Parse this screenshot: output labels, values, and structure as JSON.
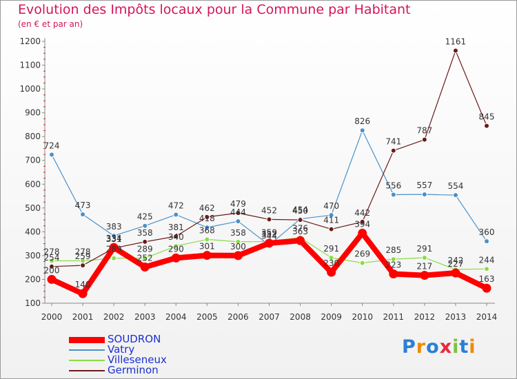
{
  "title": "Evolution des Impôts locaux pour la Commune par Habitant",
  "subtitle": "(en € et par an)",
  "logo": {
    "text": "Proxiti"
  },
  "chart_data": {
    "type": "line",
    "title": "Evolution des Impôts locaux pour la Commune par Habitant",
    "subtitle": "(en € et par an)",
    "xlabel": "",
    "ylabel": "",
    "x": [
      "2000",
      "2001",
      "2002",
      "2003",
      "2004",
      "2005",
      "2006",
      "2007",
      "2008",
      "2009",
      "2010",
      "2011",
      "2012",
      "2013",
      "2014"
    ],
    "ylim": [
      100,
      1200
    ],
    "yticks": [
      "100",
      "200",
      "300",
      "400",
      "500",
      "600",
      "700",
      "800",
      "900",
      "1000",
      "1100",
      "1200"
    ],
    "grid": false,
    "legend": "bottom-left",
    "series": [
      {
        "name": "SOUDRON",
        "color": "#ff0000",
        "values": [
          200,
          140,
          334,
          252,
          290,
          301,
          300,
          352,
          363,
          230,
          394,
          223,
          217,
          227,
          163
        ]
      },
      {
        "name": "Vatry",
        "color": "#4a90c8",
        "values": [
          724,
          473,
          383,
          425,
          472,
          418,
          444,
          344,
          454,
          470,
          826,
          556,
          557,
          554,
          360
        ]
      },
      {
        "name": "Villeseneux",
        "color": "#88dd44",
        "values": [
          278,
          278,
          289,
          289,
          340,
          368,
          358,
          359,
          376,
          291,
          269,
          285,
          291,
          242,
          244
        ]
      },
      {
        "name": "Germinon",
        "color": "#6b1a1a",
        "values": [
          254,
          259,
          331,
          358,
          381,
          462,
          479,
          452,
          450,
          411,
          442,
          741,
          787,
          1161,
          845
        ]
      }
    ],
    "point_labels": {
      "SOUDRON": [
        "200",
        "140",
        "334",
        "252",
        "290",
        "301",
        "300",
        "352",
        "363",
        "230",
        "394",
        "223",
        "217",
        "227",
        "163"
      ],
      "Vatry": [
        "724",
        "473",
        "383",
        "425",
        "472",
        "418",
        "444",
        "344",
        "454",
        "470",
        "826",
        "556",
        "557",
        "554",
        "360"
      ],
      "Villeseneux": [
        "278",
        "278",
        "289",
        "289",
        "340",
        "368",
        "358",
        "359",
        "376",
        "291",
        "269",
        "285",
        "291",
        "242",
        "244"
      ],
      "Germinon": [
        "254",
        "259",
        "331",
        "358",
        "381",
        "462",
        "479",
        "452",
        "450",
        "411",
        "442",
        "741",
        "787",
        "1161",
        "845"
      ]
    }
  }
}
